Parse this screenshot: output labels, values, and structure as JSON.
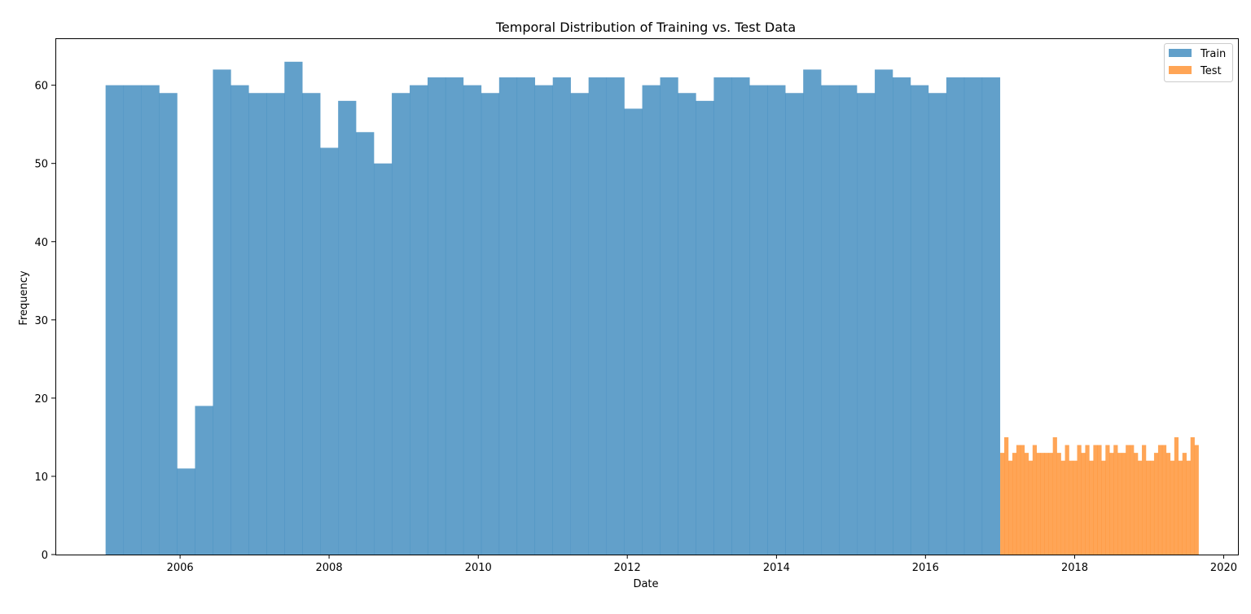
{
  "chart_data": {
    "type": "bar",
    "title": "Temporal Distribution of Training vs. Test Data",
    "xlabel": "Date",
    "ylabel": "Frequency",
    "xlim": [
      "2004-04-30",
      "2020-03-11"
    ],
    "ylim": [
      0,
      66
    ],
    "x_ticks": [
      "2006",
      "2008",
      "2010",
      "2012",
      "2014",
      "2016",
      "2018",
      "2020"
    ],
    "y_ticks": [
      0,
      10,
      20,
      30,
      40,
      50,
      60
    ],
    "grid": false,
    "legend_position": "top-right",
    "series": [
      {
        "name": "Train",
        "color": "#1f77b4",
        "opacity": 0.7,
        "range": [
          "2005-01-01",
          "2016-12-31"
        ],
        "values": [
          60,
          60,
          60,
          59,
          11,
          19,
          62,
          60,
          59,
          59,
          63,
          59,
          52,
          58,
          54,
          50,
          59,
          60,
          61,
          61,
          60,
          59,
          61,
          61,
          60,
          61,
          59,
          61,
          61,
          57,
          60,
          61,
          59,
          58,
          61,
          61,
          60,
          60,
          59,
          62,
          60,
          60,
          59,
          62,
          61,
          60,
          59,
          61,
          61,
          61
        ]
      },
      {
        "name": "Test",
        "color": "#ff7f0e",
        "opacity": 0.7,
        "range": [
          "2017-01-01",
          "2019-08-31"
        ],
        "values": [
          13,
          15,
          12,
          13,
          14,
          14,
          13,
          12,
          14,
          13,
          13,
          13,
          13,
          15,
          13,
          12,
          14,
          12,
          12,
          14,
          13,
          14,
          12,
          14,
          14,
          12,
          14,
          13,
          14,
          13,
          13,
          14,
          14,
          13,
          12,
          14,
          12,
          12,
          13,
          14,
          14,
          13,
          12,
          15,
          12,
          13,
          12,
          15,
          14
        ]
      }
    ]
  }
}
